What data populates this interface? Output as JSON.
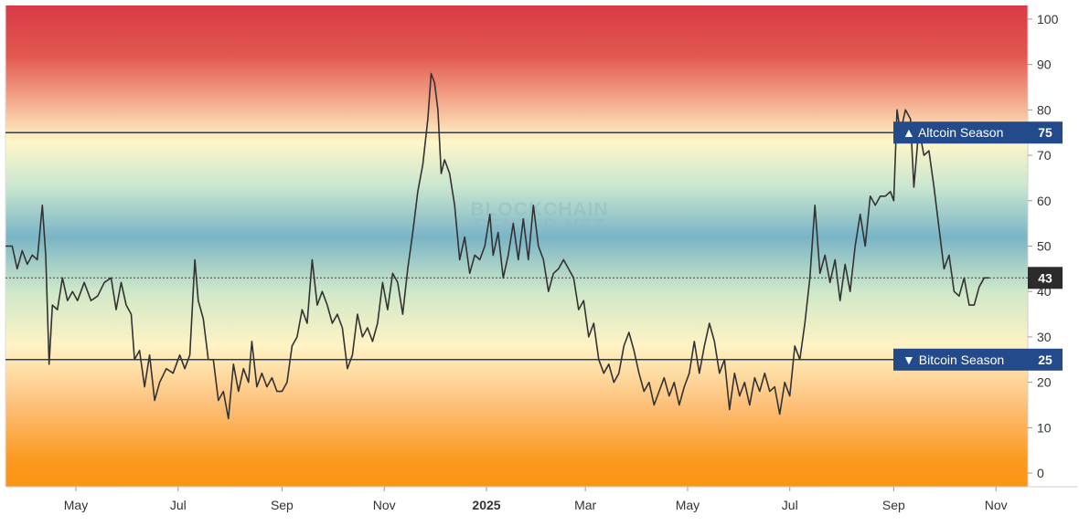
{
  "chart_data": {
    "type": "line",
    "watermark": [
      "BLOCKCHAIN",
      "CENTER.NET"
    ],
    "ylim": [
      -3,
      103
    ],
    "y_ticks": [
      "0",
      "10",
      "20",
      "30",
      "40",
      "50",
      "60",
      "70",
      "80",
      "90",
      "100"
    ],
    "x_labels": [
      "May",
      "Jul",
      "Sep",
      "Nov",
      "2025",
      "Mar",
      "May",
      "Jul",
      "Sep",
      "Nov"
    ],
    "x_label_dates": [
      "2024-05-01",
      "2024-07-01",
      "2024-09-01",
      "2024-11-01",
      "2025-01-01",
      "2025-03-01",
      "2025-05-01",
      "2025-07-01",
      "2025-09-01",
      "2025-11-01"
    ],
    "x_range": [
      "2024-03-20",
      "2025-11-20"
    ],
    "levels": [
      {
        "name": "Altcoin Season",
        "value": 75,
        "label": "▲ Altcoin Season",
        "value_label": "75"
      },
      {
        "name": "Bitcoin Season",
        "value": 25,
        "label": "▼ Bitcoin Season",
        "value_label": "25"
      }
    ],
    "current": {
      "value": 43,
      "label": "43"
    },
    "colors": {
      "line": "#333333",
      "level_line": "#1e3f7a",
      "badge": "#234a8a",
      "current_badge": "#2b2b2b"
    },
    "background_gradient": [
      {
        "value": 103,
        "color": "#d93a47"
      },
      {
        "value": 92,
        "color": "#e2574e"
      },
      {
        "value": 82,
        "color": "#f3a98c"
      },
      {
        "value": 73,
        "color": "#fff6c8"
      },
      {
        "value": 63,
        "color": "#c9e6cf"
      },
      {
        "value": 52,
        "color": "#7ab4c6"
      },
      {
        "value": 40,
        "color": "#cfe8c9"
      },
      {
        "value": 28,
        "color": "#fff3c4"
      },
      {
        "value": 15,
        "color": "#fdc07a"
      },
      {
        "value": 3,
        "color": "#fb9a20"
      },
      {
        "value": -3,
        "color": "#fb9512"
      }
    ],
    "series": [
      {
        "values": [
          [
            "2024-03-20",
            50
          ],
          [
            "2024-03-24",
            50
          ],
          [
            "2024-03-27",
            45
          ],
          [
            "2024-03-30",
            49
          ],
          [
            "2024-04-02",
            46
          ],
          [
            "2024-04-05",
            48
          ],
          [
            "2024-04-08",
            47
          ],
          [
            "2024-04-11",
            59
          ],
          [
            "2024-04-13",
            48
          ],
          [
            "2024-04-15",
            24
          ],
          [
            "2024-04-17",
            37
          ],
          [
            "2024-04-20",
            36
          ],
          [
            "2024-04-23",
            43
          ],
          [
            "2024-04-26",
            38
          ],
          [
            "2024-04-29",
            40
          ],
          [
            "2024-05-02",
            38
          ],
          [
            "2024-05-06",
            42
          ],
          [
            "2024-05-10",
            38
          ],
          [
            "2024-05-14",
            39
          ],
          [
            "2024-05-18",
            42
          ],
          [
            "2024-05-22",
            43
          ],
          [
            "2024-05-25",
            36
          ],
          [
            "2024-05-28",
            42
          ],
          [
            "2024-05-31",
            37
          ],
          [
            "2024-06-03",
            35
          ],
          [
            "2024-06-05",
            25
          ],
          [
            "2024-06-08",
            27
          ],
          [
            "2024-06-11",
            19
          ],
          [
            "2024-06-14",
            26
          ],
          [
            "2024-06-17",
            16
          ],
          [
            "2024-06-20",
            20
          ],
          [
            "2024-06-24",
            23
          ],
          [
            "2024-06-28",
            22
          ],
          [
            "2024-07-02",
            26
          ],
          [
            "2024-07-05",
            23
          ],
          [
            "2024-07-08",
            26
          ],
          [
            "2024-07-11",
            47
          ],
          [
            "2024-07-13",
            38
          ],
          [
            "2024-07-16",
            34
          ],
          [
            "2024-07-19",
            25
          ],
          [
            "2024-07-22",
            25
          ],
          [
            "2024-07-25",
            16
          ],
          [
            "2024-07-28",
            18
          ],
          [
            "2024-07-31",
            12
          ],
          [
            "2024-08-03",
            24
          ],
          [
            "2024-08-06",
            18
          ],
          [
            "2024-08-09",
            23
          ],
          [
            "2024-08-12",
            20
          ],
          [
            "2024-08-14",
            29
          ],
          [
            "2024-08-17",
            19
          ],
          [
            "2024-08-20",
            22
          ],
          [
            "2024-08-23",
            19
          ],
          [
            "2024-08-26",
            21
          ],
          [
            "2024-08-29",
            18
          ],
          [
            "2024-09-01",
            18
          ],
          [
            "2024-09-04",
            20
          ],
          [
            "2024-09-07",
            28
          ],
          [
            "2024-09-10",
            30
          ],
          [
            "2024-09-13",
            36
          ],
          [
            "2024-09-16",
            33
          ],
          [
            "2024-09-19",
            47
          ],
          [
            "2024-09-22",
            37
          ],
          [
            "2024-09-25",
            40
          ],
          [
            "2024-09-28",
            37
          ],
          [
            "2024-10-01",
            33
          ],
          [
            "2024-10-04",
            35
          ],
          [
            "2024-10-07",
            32
          ],
          [
            "2024-10-10",
            23
          ],
          [
            "2024-10-13",
            26
          ],
          [
            "2024-10-16",
            35
          ],
          [
            "2024-10-19",
            30
          ],
          [
            "2024-10-22",
            32
          ],
          [
            "2024-10-25",
            29
          ],
          [
            "2024-10-28",
            33
          ],
          [
            "2024-10-31",
            42
          ],
          [
            "2024-11-03",
            36
          ],
          [
            "2024-11-06",
            44
          ],
          [
            "2024-11-09",
            42
          ],
          [
            "2024-11-12",
            35
          ],
          [
            "2024-11-15",
            45
          ],
          [
            "2024-11-18",
            53
          ],
          [
            "2024-11-21",
            62
          ],
          [
            "2024-11-24",
            68
          ],
          [
            "2024-11-27",
            78
          ],
          [
            "2024-11-29",
            88
          ],
          [
            "2024-12-01",
            86
          ],
          [
            "2024-12-03",
            80
          ],
          [
            "2024-12-05",
            66
          ],
          [
            "2024-12-07",
            69
          ],
          [
            "2024-12-10",
            66
          ],
          [
            "2024-12-13",
            59
          ],
          [
            "2024-12-16",
            47
          ],
          [
            "2024-12-19",
            52
          ],
          [
            "2024-12-22",
            44
          ],
          [
            "2024-12-25",
            48
          ],
          [
            "2024-12-28",
            47
          ],
          [
            "2024-12-31",
            50
          ],
          [
            "2025-01-03",
            57
          ],
          [
            "2025-01-05",
            48
          ],
          [
            "2025-01-08",
            53
          ],
          [
            "2025-01-11",
            43
          ],
          [
            "2025-01-14",
            48
          ],
          [
            "2025-01-17",
            55
          ],
          [
            "2025-01-20",
            47
          ],
          [
            "2025-01-23",
            56
          ],
          [
            "2025-01-26",
            47
          ],
          [
            "2025-01-29",
            59
          ],
          [
            "2025-02-01",
            50
          ],
          [
            "2025-02-04",
            47
          ],
          [
            "2025-02-07",
            40
          ],
          [
            "2025-02-10",
            44
          ],
          [
            "2025-02-13",
            45
          ],
          [
            "2025-02-16",
            47
          ],
          [
            "2025-02-19",
            45
          ],
          [
            "2025-02-22",
            43
          ],
          [
            "2025-02-25",
            36
          ],
          [
            "2025-02-28",
            38
          ],
          [
            "2025-03-03",
            30
          ],
          [
            "2025-03-06",
            33
          ],
          [
            "2025-03-09",
            25
          ],
          [
            "2025-03-12",
            22
          ],
          [
            "2025-03-15",
            24
          ],
          [
            "2025-03-18",
            20
          ],
          [
            "2025-03-21",
            22
          ],
          [
            "2025-03-24",
            28
          ],
          [
            "2025-03-27",
            31
          ],
          [
            "2025-03-30",
            27
          ],
          [
            "2025-04-02",
            22
          ],
          [
            "2025-04-05",
            18
          ],
          [
            "2025-04-08",
            20
          ],
          [
            "2025-04-11",
            15
          ],
          [
            "2025-04-14",
            18
          ],
          [
            "2025-04-17",
            21
          ],
          [
            "2025-04-20",
            17
          ],
          [
            "2025-04-23",
            20
          ],
          [
            "2025-04-26",
            15
          ],
          [
            "2025-04-29",
            19
          ],
          [
            "2025-05-02",
            22
          ],
          [
            "2025-05-05",
            29
          ],
          [
            "2025-05-08",
            22
          ],
          [
            "2025-05-11",
            28
          ],
          [
            "2025-05-14",
            33
          ],
          [
            "2025-05-17",
            29
          ],
          [
            "2025-05-20",
            22
          ],
          [
            "2025-05-23",
            25
          ],
          [
            "2025-05-26",
            14
          ],
          [
            "2025-05-29",
            22
          ],
          [
            "2025-06-01",
            17
          ],
          [
            "2025-06-04",
            20
          ],
          [
            "2025-06-07",
            15
          ],
          [
            "2025-06-10",
            21
          ],
          [
            "2025-06-13",
            18
          ],
          [
            "2025-06-16",
            22
          ],
          [
            "2025-06-19",
            18
          ],
          [
            "2025-06-22",
            19
          ],
          [
            "2025-06-25",
            13
          ],
          [
            "2025-06-28",
            20
          ],
          [
            "2025-07-01",
            17
          ],
          [
            "2025-07-04",
            28
          ],
          [
            "2025-07-07",
            25
          ],
          [
            "2025-07-10",
            33
          ],
          [
            "2025-07-13",
            43
          ],
          [
            "2025-07-16",
            59
          ],
          [
            "2025-07-19",
            44
          ],
          [
            "2025-07-22",
            48
          ],
          [
            "2025-07-25",
            42
          ],
          [
            "2025-07-28",
            47
          ],
          [
            "2025-07-31",
            38
          ],
          [
            "2025-08-03",
            46
          ],
          [
            "2025-08-06",
            40
          ],
          [
            "2025-08-09",
            50
          ],
          [
            "2025-08-12",
            57
          ],
          [
            "2025-08-15",
            50
          ],
          [
            "2025-08-18",
            61
          ],
          [
            "2025-08-21",
            59
          ],
          [
            "2025-08-24",
            61
          ],
          [
            "2025-08-27",
            61
          ],
          [
            "2025-08-30",
            62
          ],
          [
            "2025-09-01",
            60
          ],
          [
            "2025-09-03",
            80
          ],
          [
            "2025-09-05",
            75
          ],
          [
            "2025-09-08",
            80
          ],
          [
            "2025-09-11",
            78
          ],
          [
            "2025-09-13",
            63
          ],
          [
            "2025-09-16",
            76
          ],
          [
            "2025-09-19",
            70
          ],
          [
            "2025-09-22",
            71
          ],
          [
            "2025-09-25",
            63
          ],
          [
            "2025-09-28",
            54
          ],
          [
            "2025-10-01",
            45
          ],
          [
            "2025-10-04",
            48
          ],
          [
            "2025-10-07",
            40
          ],
          [
            "2025-10-10",
            39
          ],
          [
            "2025-10-13",
            43
          ],
          [
            "2025-10-16",
            37
          ],
          [
            "2025-10-19",
            37
          ],
          [
            "2025-10-22",
            41
          ],
          [
            "2025-10-25",
            43
          ],
          [
            "2025-10-28",
            43
          ]
        ]
      }
    ]
  }
}
